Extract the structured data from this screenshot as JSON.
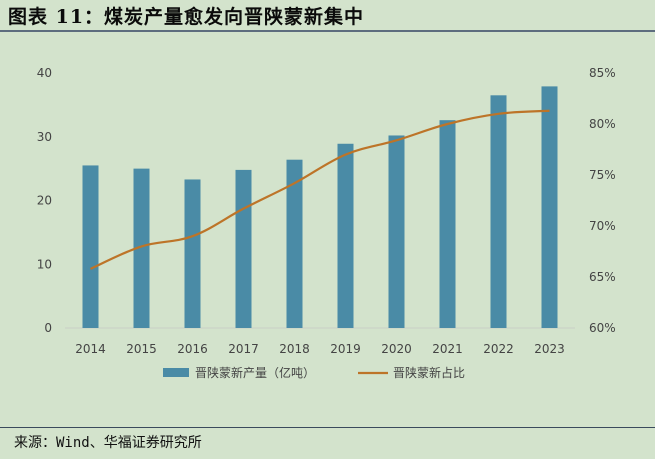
{
  "title": "图表 11：煤炭产量愈发向晋陕蒙新集中",
  "source": "来源：Wind、华福证券研究所",
  "colors": {
    "bar": "#4a8ba6",
    "line": "#bd7428"
  },
  "chart_data": {
    "type": "bar",
    "categories": [
      "2014",
      "2015",
      "2016",
      "2017",
      "2018",
      "2019",
      "2020",
      "2021",
      "2022",
      "2023"
    ],
    "series": [
      {
        "name": "晋陕蒙新产量（亿吨）",
        "type": "bar",
        "axis": "left",
        "values": [
          25.5,
          25.0,
          23.3,
          24.8,
          26.4,
          28.9,
          30.2,
          32.6,
          36.5,
          37.9
        ]
      },
      {
        "name": "晋陕蒙新占比",
        "type": "line",
        "axis": "right",
        "values": [
          65.8,
          68.0,
          69.0,
          71.7,
          74.2,
          77.0,
          78.4,
          80.0,
          81.0,
          81.3
        ]
      }
    ],
    "y_left": {
      "min": 0,
      "max": 40,
      "ticks": [
        0,
        10,
        20,
        30,
        40
      ]
    },
    "y_right": {
      "min": 60,
      "max": 85,
      "ticks": [
        "60%",
        "65%",
        "70%",
        "75%",
        "80%",
        "85%"
      ],
      "tick_values": [
        60,
        65,
        70,
        75,
        80,
        85
      ]
    },
    "grid": false,
    "legend": "bottom"
  }
}
